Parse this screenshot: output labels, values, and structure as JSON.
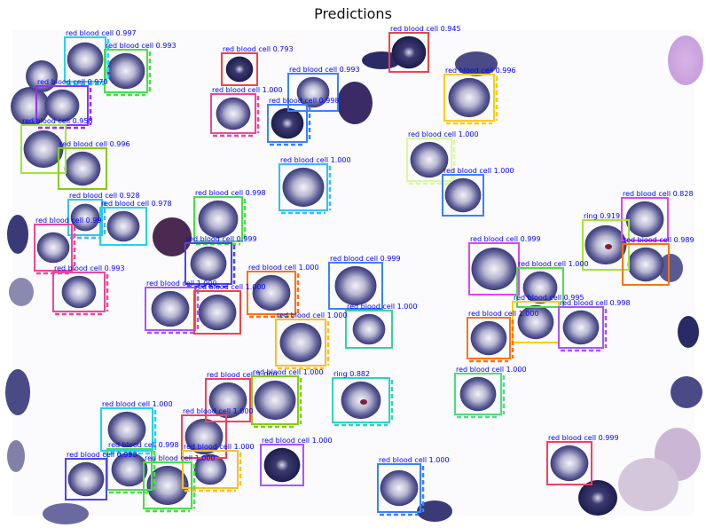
{
  "title": "Predictions",
  "colors": {
    "label_text": "#0000ff"
  },
  "detections": [
    {
      "label": "red blood cell 0.997",
      "color": "#22d3ee"
    },
    {
      "label": "red blood cell 0.993",
      "color": "#4ade4a"
    },
    {
      "label": "red blood cell 0.793",
      "color": "#ef4444"
    },
    {
      "label": "red blood cell 0.945",
      "color": "#ef4444"
    },
    {
      "label": "red blood cell 0.993",
      "color": "#3b82f6"
    },
    {
      "label": "red blood cell 0.996",
      "color": "#facc15"
    },
    {
      "label": "red blood cell 0.970",
      "color": "#9333ea"
    },
    {
      "label": "red blood cell 1.000",
      "color": "#ec4899"
    },
    {
      "label": "red blood cell 0.998",
      "color": "#3b82f6"
    },
    {
      "label": "red blood cell 0.958",
      "color": "#a3e635"
    },
    {
      "label": "red blood cell 0.996",
      "color": "#84cc16"
    },
    {
      "label": "red blood cell 1.000",
      "color": "#38bdf8"
    },
    {
      "label": "red blood cell 1.000",
      "color": "#d9f99d"
    },
    {
      "label": "red blood cell 1.000",
      "color": "#3b82f6"
    },
    {
      "label": "red blood cell 0.928",
      "color": "#38bdf8"
    },
    {
      "label": "red blood cell 0.978",
      "color": "#22d3ee"
    },
    {
      "label": "red blood cell 0.998",
      "color": "#4ade4a"
    },
    {
      "label": "red blood cell 0.828",
      "color": "#d946ef"
    },
    {
      "label": "red blood cell 0.99",
      "color": "#ec4899"
    },
    {
      "label": "ring 0.919",
      "color": "#a3e635"
    },
    {
      "label": "red blood cell 0.999",
      "color": "#4f46e5"
    },
    {
      "label": "red blood cell 0.989",
      "color": "#f97316"
    },
    {
      "label": "red blood cell 0.999",
      "color": "#d946ef"
    },
    {
      "label": "red blood cell 0.993",
      "color": "#ec4899"
    },
    {
      "label": "red blood cell 1.000",
      "color": "#f97316"
    },
    {
      "label": "red blood cell 0.999",
      "color": "#3b82f6"
    },
    {
      "label": "red blood cell 1.000",
      "color": "#4ade4a"
    },
    {
      "label": "red blood cell 1.000",
      "color": "#a855f7"
    },
    {
      "label": "red blood cell 1.000",
      "color": "#ef4444"
    },
    {
      "label": "red blood cell 0.995",
      "color": "#facc15"
    },
    {
      "label": "red blood cell 0.998",
      "color": "#a855f7"
    },
    {
      "label": "red blood cell 1.000",
      "color": "#34d399"
    },
    {
      "label": "red blood cell 1.000",
      "color": "#fbbf24"
    },
    {
      "label": "red blood cell 1.000",
      "color": "#f97316"
    },
    {
      "label": "red blood cell 1.000",
      "color": "#4ade80"
    },
    {
      "label": "red blood cell 1.000",
      "color": "#f43f5e"
    },
    {
      "label": "red blood cell 1.000",
      "color": "#84cc16"
    },
    {
      "label": "ring 0.882",
      "color": "#2dd4bf"
    },
    {
      "label": "red blood cell 1.000",
      "color": "#22d3ee"
    },
    {
      "label": "red blood cell 1.000",
      "color": "#f43f5e"
    },
    {
      "label": "red blood cell 1.000",
      "color": "#a855f7"
    },
    {
      "label": "red blood cell 0.998",
      "color": "#4ade4a"
    },
    {
      "label": "red blood cell 1.000",
      "color": "#fbbf24"
    },
    {
      "label": "red blood cell 0.998",
      "color": "#4f46e5"
    },
    {
      "label": "red blood cell 1.000",
      "color": "#4ade4a"
    },
    {
      "label": "red blood cell 1.000",
      "color": "#3b82f6"
    },
    {
      "label": "red blood cell 0.999",
      "color": "#f43f5e"
    }
  ]
}
